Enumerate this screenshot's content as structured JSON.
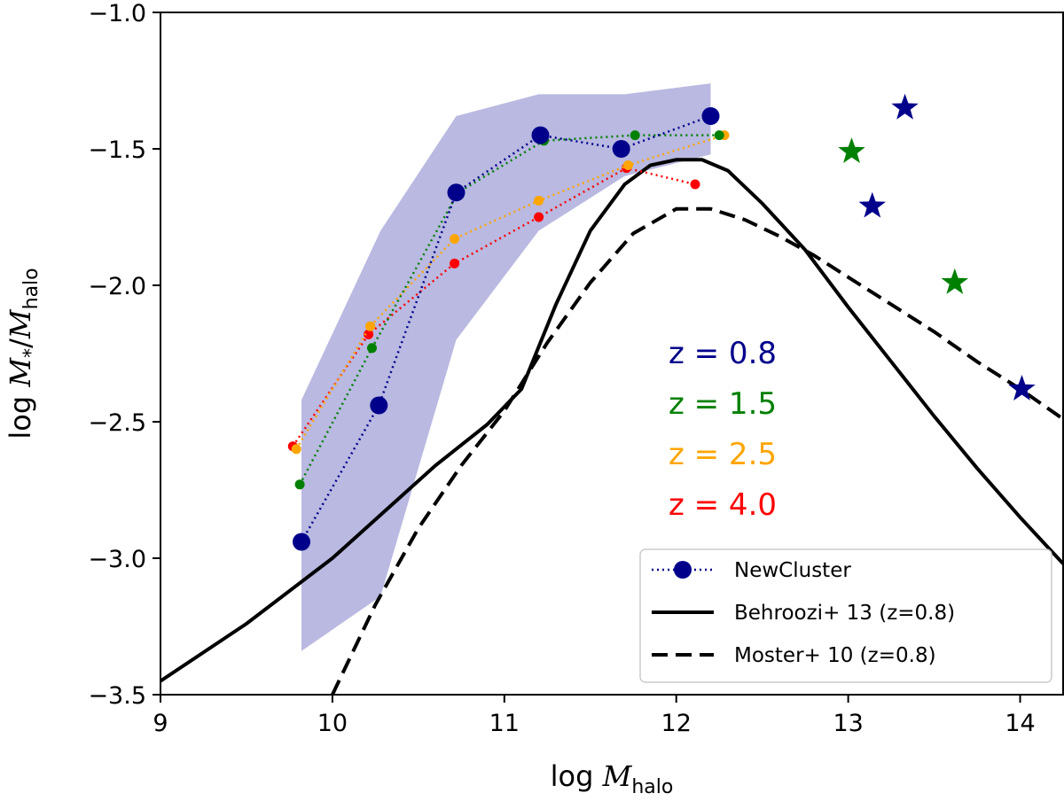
{
  "chart_data": {
    "type": "line",
    "xlabel_prefix": "log ",
    "xlabel_var": "M",
    "xlabel_sub": "halo",
    "ylabel_prefix": "log ",
    "ylabel_var1": "M",
    "ylabel_sub1": "*",
    "ylabel_slash": "/",
    "ylabel_var2": "M",
    "ylabel_sub2": "halo",
    "xlim": [
      9.0,
      14.25
    ],
    "ylim": [
      -3.5,
      -1.0
    ],
    "xticks": [
      9,
      10,
      11,
      12,
      13,
      14
    ],
    "xtick_labels": [
      "9",
      "10",
      "11",
      "12",
      "13",
      "14"
    ],
    "yticks": [
      -3.5,
      -3.0,
      -2.5,
      -2.0,
      -1.5,
      -1.0
    ],
    "ytick_labels": [
      "−3.5",
      "−3.0",
      "−2.5",
      "−2.0",
      "−1.5",
      "−1.0"
    ],
    "band": {
      "color": "#7f7fc9",
      "x": [
        9.82,
        10.28,
        10.72,
        11.2,
        11.7,
        12.2
      ],
      "upper": [
        -2.42,
        -1.8,
        -1.38,
        -1.3,
        -1.3,
        -1.26
      ],
      "lower": [
        -3.34,
        -3.14,
        -2.2,
        -1.8,
        -1.6,
        -1.52
      ]
    },
    "series": [
      {
        "name": "z = 0.8",
        "color": "#00008b",
        "size": "large",
        "x": [
          9.82,
          10.27,
          10.72,
          11.21,
          11.68,
          12.2
        ],
        "y": [
          -2.94,
          -2.44,
          -1.66,
          -1.45,
          -1.5,
          -1.38
        ]
      },
      {
        "name": "z = 1.5",
        "color": "#008000",
        "size": "small",
        "x": [
          9.81,
          10.23,
          10.73,
          11.23,
          11.76,
          12.25
        ],
        "y": [
          -2.73,
          -2.23,
          -1.66,
          -1.47,
          -1.45,
          -1.45
        ]
      },
      {
        "name": "z = 2.5",
        "color": "#ffa500",
        "size": "small",
        "x": [
          9.79,
          10.22,
          10.71,
          11.2,
          11.72,
          12.28
        ],
        "y": [
          -2.6,
          -2.15,
          -1.83,
          -1.69,
          -1.56,
          -1.45
        ]
      },
      {
        "name": "z = 4.0",
        "color": "#ff0000",
        "size": "small",
        "x": [
          9.77,
          10.21,
          10.71,
          11.2,
          11.71,
          12.11
        ],
        "y": [
          -2.59,
          -2.18,
          -1.92,
          -1.75,
          -1.57,
          -1.63
        ]
      }
    ],
    "stars": [
      {
        "color": "#008000",
        "x": 13.02,
        "y": -1.51
      },
      {
        "color": "#008000",
        "x": 13.62,
        "y": -1.99
      },
      {
        "color": "#00008b",
        "x": 13.33,
        "y": -1.35
      },
      {
        "color": "#00008b",
        "x": 13.14,
        "y": -1.71
      },
      {
        "color": "#00008b",
        "x": 14.01,
        "y": -2.38
      }
    ],
    "behroozi": {
      "x": [
        9.0,
        9.5,
        10.0,
        10.3,
        10.6,
        10.9,
        11.1,
        11.3,
        11.5,
        11.7,
        11.85,
        12.0,
        12.15,
        12.3,
        12.5,
        12.75,
        13.0,
        13.25,
        13.5,
        13.75,
        14.0,
        14.25
      ],
      "y": [
        -3.45,
        -3.24,
        -3.0,
        -2.83,
        -2.66,
        -2.51,
        -2.38,
        -2.07,
        -1.8,
        -1.63,
        -1.56,
        -1.54,
        -1.54,
        -1.58,
        -1.7,
        -1.87,
        -2.08,
        -2.28,
        -2.48,
        -2.67,
        -2.85,
        -3.02
      ]
    },
    "moster": {
      "x": [
        10.0,
        10.25,
        10.5,
        10.75,
        11.0,
        11.25,
        11.5,
        11.75,
        12.0,
        12.2,
        12.4,
        12.6,
        12.8,
        13.0,
        13.25,
        13.5,
        13.75,
        14.0,
        14.25
      ],
      "y": [
        -3.5,
        -3.17,
        -2.89,
        -2.66,
        -2.46,
        -2.21,
        -1.99,
        -1.81,
        -1.72,
        -1.72,
        -1.76,
        -1.82,
        -1.89,
        -1.97,
        -2.07,
        -2.17,
        -2.28,
        -2.38,
        -2.49
      ]
    },
    "z_labels": [
      {
        "text": "z = 0.8",
        "color": "#00008b"
      },
      {
        "text": "z = 1.5",
        "color": "#008000"
      },
      {
        "text": "z = 2.5",
        "color": "#ffa500"
      },
      {
        "text": "z = 4.0",
        "color": "#ff0000"
      }
    ],
    "legend": {
      "position": "lower right",
      "entries": [
        "NewCluster",
        "Behroozi+ 13 (z=0.8)",
        "Moster+ 10 (z=0.8)"
      ]
    }
  }
}
